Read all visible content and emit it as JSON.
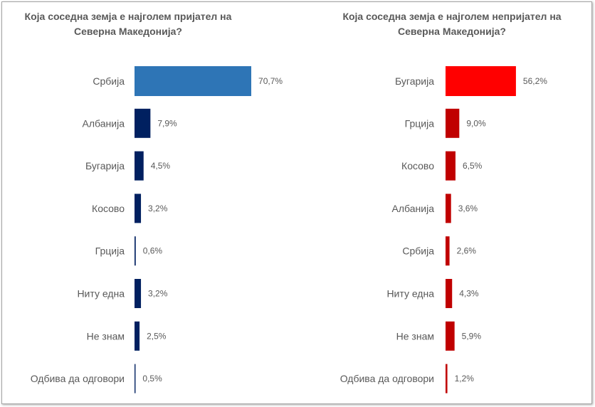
{
  "chart_data": [
    {
      "type": "bar",
      "orientation": "horizontal",
      "title": "Која соседна земја е најголем пријател на Северна Македонија?",
      "categories": [
        "Србија",
        "Албанија",
        "Бугарија",
        "Косово",
        "Грција",
        "Ниту една",
        "Не знам",
        "Одбива да одговори"
      ],
      "values": [
        70.7,
        7.9,
        4.5,
        3.2,
        0.6,
        3.2,
        2.5,
        0.5
      ],
      "labels": [
        "70,7%",
        "7,9%",
        "4,5%",
        "3,2%",
        "0,6%",
        "3,2%",
        "2,5%",
        "0,5%"
      ],
      "colors": [
        "#2e75b6",
        "#002060",
        "#002060",
        "#002060",
        "#002060",
        "#002060",
        "#002060",
        "#002060"
      ],
      "xlim": [
        0,
        100
      ],
      "grid": false
    },
    {
      "type": "bar",
      "orientation": "horizontal",
      "title": "Која соседна земја е најголем непријател на Северна Македонија?",
      "categories": [
        "Бугарија",
        "Грција",
        "Косово",
        "Албанија",
        "Србија",
        "Ниту една",
        "Не знам",
        "Одбива да одговори"
      ],
      "values": [
        56.2,
        9.0,
        6.5,
        3.6,
        2.6,
        4.3,
        5.9,
        1.2
      ],
      "labels": [
        "56,2%",
        "9,0%",
        "6,5%",
        "3,6%",
        "2,6%",
        "4,3%",
        "5,9%",
        "1,2%"
      ],
      "colors": [
        "#ff0000",
        "#c00000",
        "#c00000",
        "#c00000",
        "#c00000",
        "#c00000",
        "#c00000",
        "#c00000"
      ],
      "xlim": [
        0,
        100
      ],
      "grid": false
    }
  ]
}
